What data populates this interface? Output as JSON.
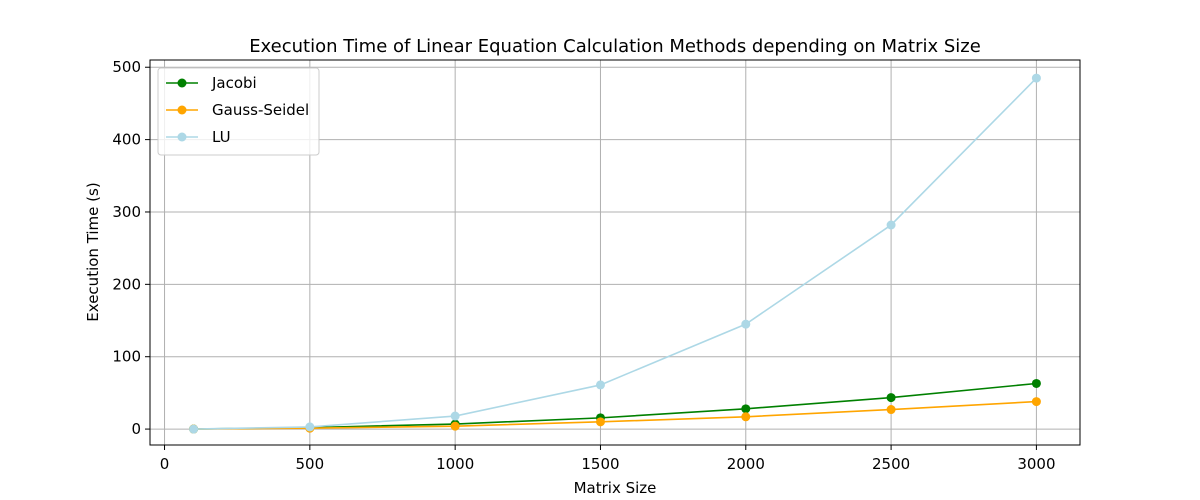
{
  "chart_data": {
    "type": "line",
    "title": "Execution Time of Linear Equation Calculation Methods depending on Matrix Size",
    "xlabel": "Matrix Size",
    "ylabel": "Execution Time (s)",
    "x": [
      100,
      500,
      1000,
      1500,
      2000,
      2500,
      3000
    ],
    "xlim": [
      -50,
      3150
    ],
    "ylim": [
      -22,
      510
    ],
    "xticks": [
      0,
      500,
      1000,
      1500,
      2000,
      2500,
      3000
    ],
    "yticks": [
      0,
      100,
      200,
      300,
      400,
      500
    ],
    "grid": true,
    "legend_position": "top-left",
    "series": [
      {
        "name": "Jacobi",
        "color": "#008000",
        "marker": "circle",
        "values": [
          0.1,
          2,
          7,
          15.5,
          28,
          43.5,
          63
        ]
      },
      {
        "name": "Gauss-Seidel",
        "color": "#ffa500",
        "marker": "circle",
        "values": [
          0.1,
          1.2,
          4,
          10,
          17,
          27,
          38
        ]
      },
      {
        "name": "LU",
        "color": "#add8e6",
        "marker": "circle",
        "values": [
          0.02,
          3,
          18,
          61,
          145,
          282,
          485
        ]
      }
    ]
  }
}
